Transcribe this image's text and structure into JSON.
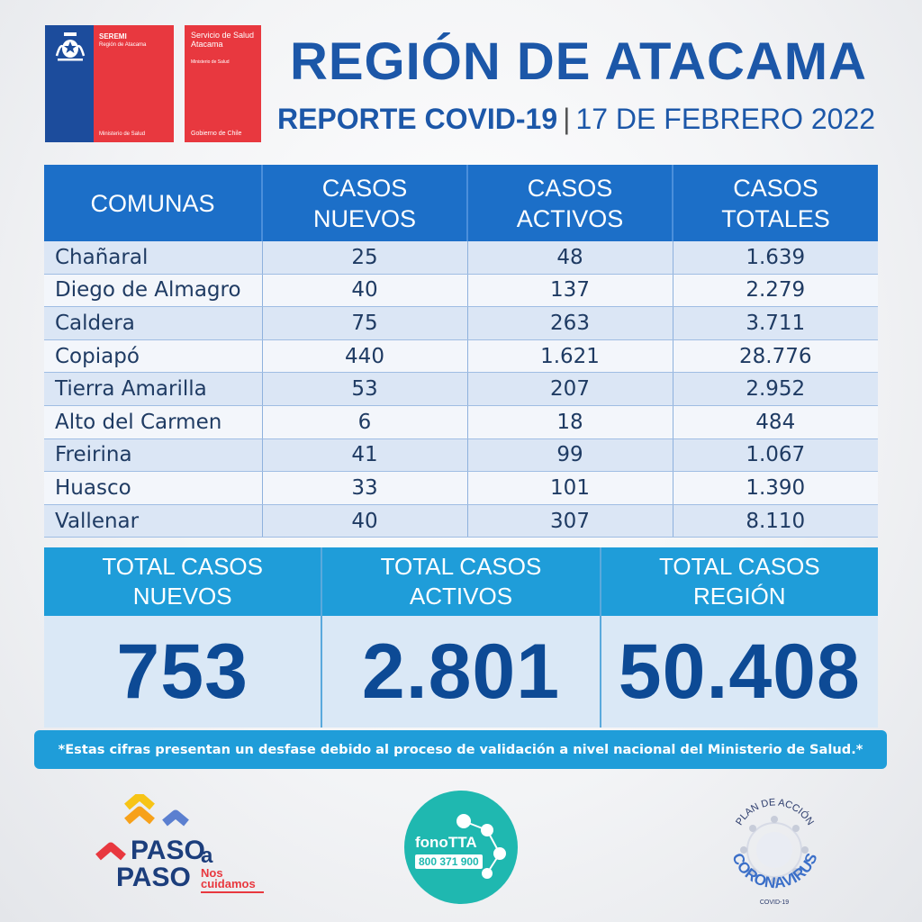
{
  "logos": {
    "seremi_title": "SEREMI",
    "seremi_region": "Región de Atacama",
    "seremi_ministry": "Ministerio de Salud",
    "servicio_name": "Servicio de Salud Atacama",
    "servicio_ministry": "Ministerio de Salud",
    "servicio_gov": "Gobierno de Chile",
    "paso_word1": "PASO",
    "paso_a": "a",
    "paso_word2": "PASO",
    "paso_tag": "Nos cuidamos",
    "fono_name": "fonoTTA",
    "fono_number": "800 371 900",
    "plan_arc": "PLAN DE ACCIÓN",
    "plan_main": "CORONAVIRUS",
    "plan_sub": "COVID-19"
  },
  "header": {
    "title": "REGIÓN DE ATACAMA",
    "report": "REPORTE COVID-19",
    "separator": "|",
    "date": "17 DE FEBRERO 2022"
  },
  "table": {
    "columns": [
      "COMUNAS",
      "CASOS NUEVOS",
      "CASOS ACTIVOS",
      "CASOS TOTALES"
    ],
    "rows": [
      [
        "Chañaral",
        "25",
        "48",
        "1.639"
      ],
      [
        "Diego de Almagro",
        "40",
        "137",
        "2.279"
      ],
      [
        "Caldera",
        "75",
        "263",
        "3.711"
      ],
      [
        "Copiapó",
        "440",
        "1.621",
        "28.776"
      ],
      [
        "Tierra Amarilla",
        "53",
        "207",
        "2.952"
      ],
      [
        "Alto del Carmen",
        "6",
        "18",
        "484"
      ],
      [
        "Freirina",
        "41",
        "99",
        "1.067"
      ],
      [
        "Huasco",
        "33",
        "101",
        "1.390"
      ],
      [
        "Vallenar",
        "40",
        "307",
        "8.110"
      ]
    ]
  },
  "totals": [
    {
      "label": "TOTAL CASOS NUEVOS",
      "value": "753"
    },
    {
      "label": "TOTAL CASOS ACTIVOS",
      "value": "2.801"
    },
    {
      "label": "TOTAL CASOS REGIÓN",
      "value": "50.408"
    }
  ],
  "note": "*Estas cifras presentan un desfase debido al proceso de validación a nivel nacional del Ministerio de Salud.*",
  "colors": {
    "title_blue": "#1c57a8",
    "table_header": "#1c6fc8",
    "totals_header": "#1f9dd9",
    "totals_value": "#0d4a95",
    "gov_red": "#e8383f",
    "gov_blue": "#1c4c9c",
    "fono_teal": "#1fb8b0"
  }
}
